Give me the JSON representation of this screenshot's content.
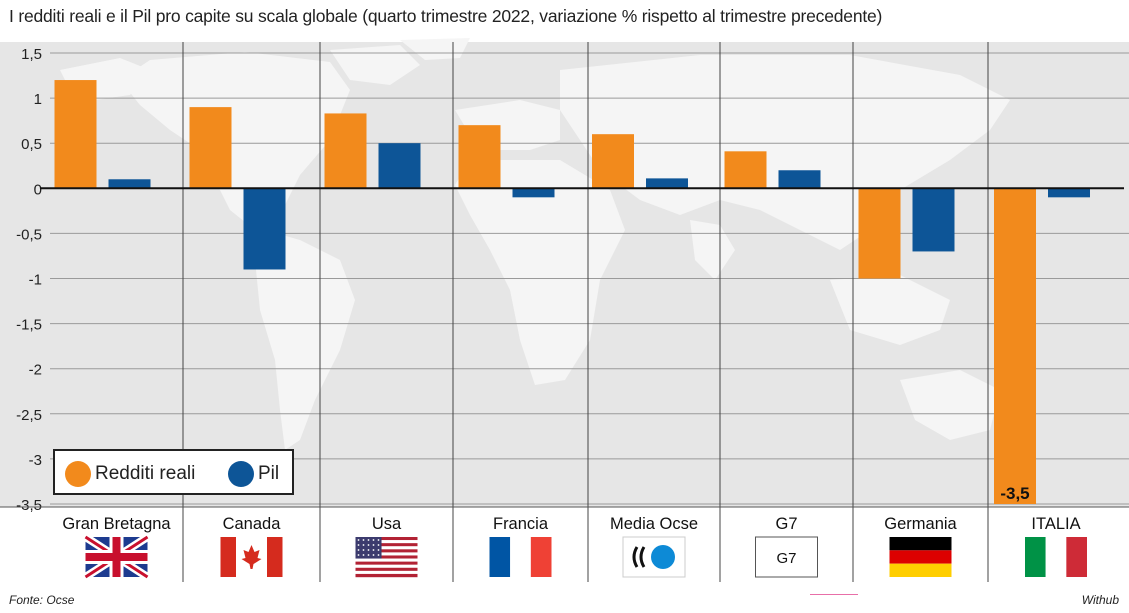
{
  "title": "I redditi reali e il Pil pro capite su scala globale (quarto trimestre 2022, variazione % rispetto al trimestre precedente)",
  "source": "Fonte: Ocse",
  "brand": "Withub",
  "colors": {
    "redditi": "#f28a1c",
    "pil": "#0d5597",
    "background": "#e6e6e6",
    "map": "#f5f5f5"
  },
  "chart_data": {
    "type": "bar",
    "title": "I redditi reali e il Pil pro capite su scala globale (quarto trimestre 2022, variazione % rispetto al trimestre precedente)",
    "categories": [
      "Gran Bretagna",
      "Canada",
      "Usa",
      "Francia",
      "Media Ocse",
      "G7",
      "Germania",
      "ITALIA"
    ],
    "series": [
      {
        "name": "Redditi reali",
        "values": [
          1.2,
          0.9,
          0.83,
          0.7,
          0.6,
          0.41,
          -1.0,
          -3.5
        ]
      },
      {
        "name": "Pil",
        "values": [
          0.1,
          -0.9,
          0.5,
          -0.1,
          0.11,
          0.2,
          -0.7,
          -0.1
        ]
      }
    ],
    "ylim": [
      -3.5,
      1.5
    ],
    "yticks": [
      1.5,
      1,
      0.5,
      0,
      -0.5,
      -1,
      -1.5,
      -2,
      -2.5,
      -3,
      -3.5
    ],
    "ytick_labels": [
      "1,5",
      "1",
      "0,5",
      "0",
      "-0,5",
      "-1",
      "-1,5",
      "-2",
      "-2,5",
      "-3",
      "-3,5"
    ],
    "annotations": [
      {
        "category": "ITALIA",
        "series": "Redditi reali",
        "text": "-3,5"
      }
    ],
    "flags": [
      "uk-flag-icon",
      "canada-flag-icon",
      "usa-flag-icon",
      "france-flag-icon",
      "oecd-logo-icon",
      "g7-logo-icon",
      "germany-flag-icon",
      "italy-flag-icon"
    ],
    "g7_badge_text": "G7",
    "legend_position": "bottom-left",
    "grid": true
  }
}
